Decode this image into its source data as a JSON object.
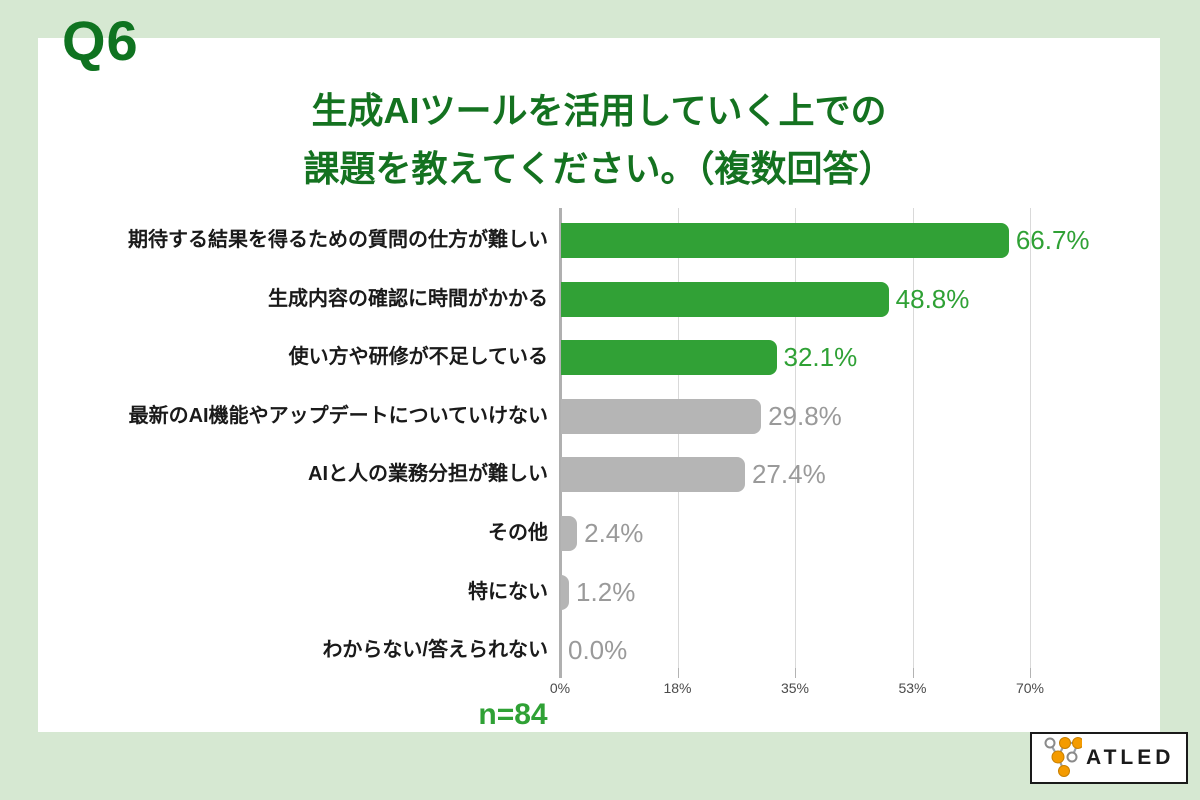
{
  "page": {
    "question_label": "Q6",
    "title_line1": "生成AIツールを活用していく上での",
    "title_line2": "課題を教えてください。（複数回答）",
    "sample_size": "n=84",
    "logo_text": "ATLED"
  },
  "colors": {
    "background": "#d6e8d2",
    "card": "#ffffff",
    "title_green": "#147220",
    "bar_green": "#31a136",
    "bar_gray": "#b5b5b5",
    "value_green": "#2fa135",
    "value_gray": "#9a9a9a",
    "label_black": "#1a1a1a",
    "gridline": "#d9d9d9",
    "axis": "#b0b0b0",
    "logo_orange": "#f49b00"
  },
  "chart_data": {
    "type": "bar",
    "orientation": "horizontal",
    "title": "生成AIツールを活用していく上での課題を教えてください。（複数回答）",
    "categories": [
      "期待する結果を得るための質問の仕方が難しい",
      "生成内容の確認に時間がかかる",
      "使い方や研修が不足している",
      "最新のAI機能やアップデートについていけない",
      "AIと人の業務分担が難しい",
      "その他",
      "特にない",
      "わからない/答えられない"
    ],
    "values": [
      66.7,
      48.8,
      32.1,
      29.8,
      27.4,
      2.4,
      1.2,
      0.0
    ],
    "value_labels": [
      "66.7%",
      "48.8%",
      "32.1%",
      "29.8%",
      "27.4%",
      "2.4%",
      "1.2%",
      "0.0%"
    ],
    "bar_colors": [
      "green",
      "green",
      "green",
      "gray",
      "gray",
      "gray",
      "gray",
      "gray"
    ],
    "x_ticks": [
      "0%",
      "18%",
      "35%",
      "53%",
      "70%"
    ],
    "x_tick_values": [
      0,
      17.5,
      35,
      52.5,
      70
    ],
    "xlim": [
      0,
      70
    ],
    "grid": true,
    "legend": false,
    "sample_size": "n=84"
  }
}
